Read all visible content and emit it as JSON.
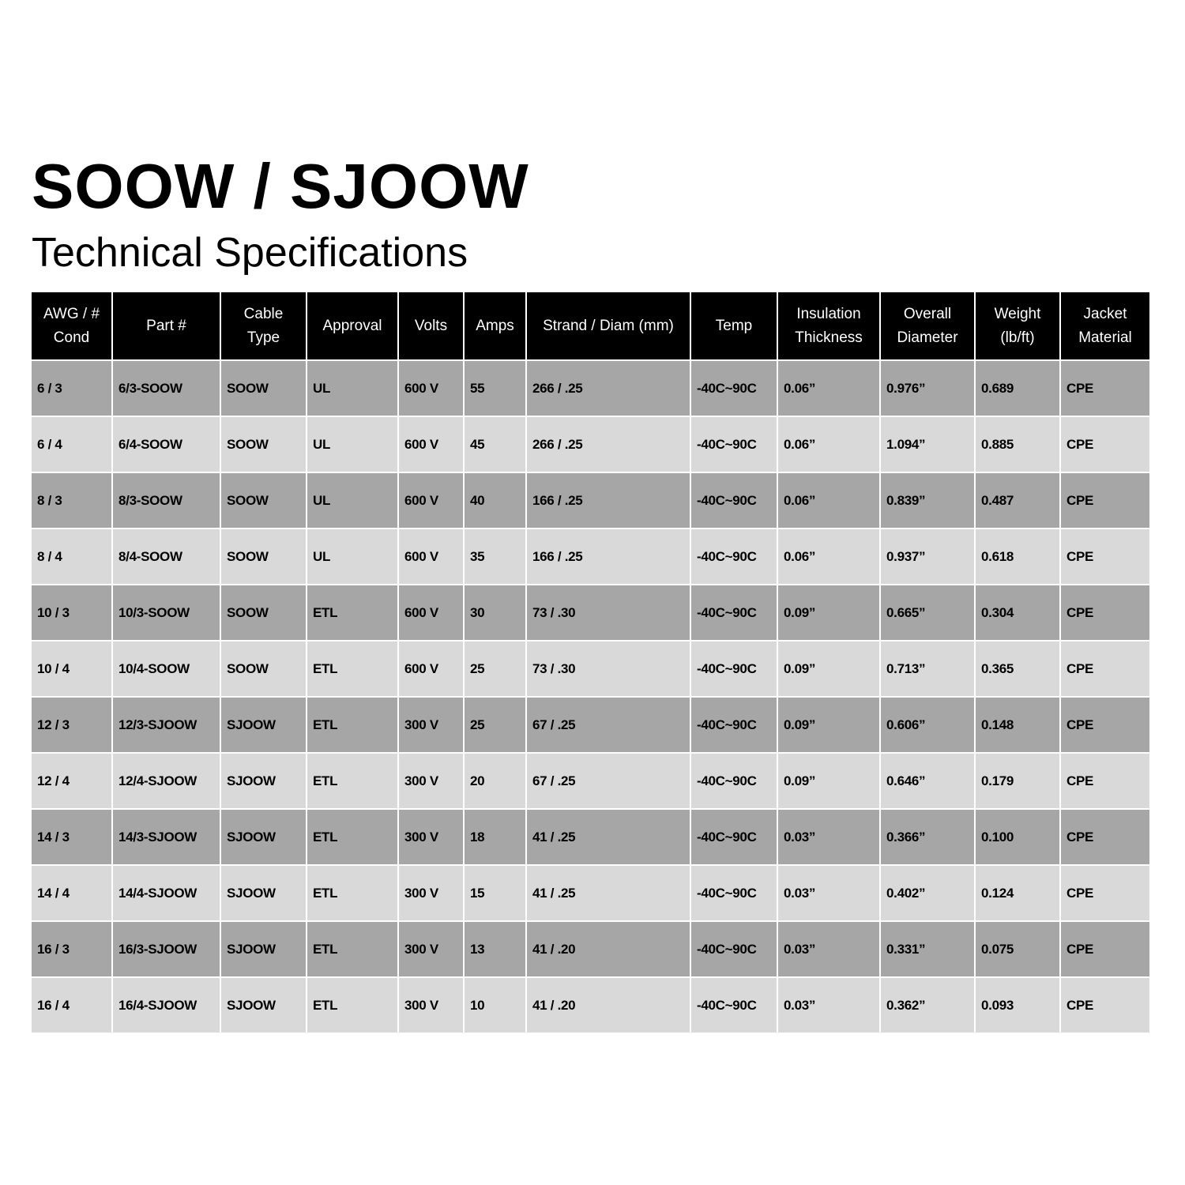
{
  "title": "SOOW / SJOOW",
  "subtitle": "Technical Specifications",
  "colors": {
    "header_bg": "#000000",
    "row_dark": "#a6a6a6",
    "row_light": "#d9d9d9"
  },
  "table": {
    "headers": [
      "AWG / #\nCond",
      "Part #",
      "Cable\nType",
      "Approval",
      "Volts",
      "Amps",
      "Strand / Diam  (mm)",
      "Temp",
      "Insulation\nThickness",
      "Overall\nDiameter",
      "Weight\n(lb/ft)",
      "Jacket\nMaterial"
    ],
    "rows": [
      [
        "6 / 3",
        "6/3-SOOW",
        "SOOW",
        "UL",
        "600 V",
        "55",
        "266 / .25",
        "-40C~90C",
        "0.06”",
        "0.976”",
        "0.689",
        "CPE"
      ],
      [
        "6 / 4",
        "6/4-SOOW",
        "SOOW",
        "UL",
        "600 V",
        "45",
        "266 / .25",
        "-40C~90C",
        "0.06”",
        "1.094”",
        "0.885",
        "CPE"
      ],
      [
        "8 / 3",
        "8/3-SOOW",
        "SOOW",
        "UL",
        "600 V",
        "40",
        "166 / .25",
        "-40C~90C",
        "0.06”",
        "0.839”",
        "0.487",
        "CPE"
      ],
      [
        "8 / 4",
        "8/4-SOOW",
        "SOOW",
        "UL",
        "600 V",
        "35",
        "166 / .25",
        "-40C~90C",
        "0.06”",
        "0.937”",
        "0.618",
        "CPE"
      ],
      [
        "10 / 3",
        "10/3-SOOW",
        "SOOW",
        "ETL",
        "600 V",
        "30",
        "73 / .30",
        "-40C~90C",
        "0.09”",
        "0.665”",
        "0.304",
        "CPE"
      ],
      [
        "10 / 4",
        "10/4-SOOW",
        "SOOW",
        "ETL",
        "600 V",
        "25",
        "73 / .30",
        "-40C~90C",
        "0.09”",
        "0.713”",
        "0.365",
        "CPE"
      ],
      [
        "12 / 3",
        "12/3-SJOOW",
        "SJOOW",
        "ETL",
        "300 V",
        "25",
        "67 / .25",
        "-40C~90C",
        "0.09”",
        "0.606”",
        "0.148",
        "CPE"
      ],
      [
        "12 / 4",
        "12/4-SJOOW",
        "SJOOW",
        "ETL",
        "300 V",
        "20",
        "67 / .25",
        "-40C~90C",
        "0.09”",
        "0.646”",
        "0.179",
        "CPE"
      ],
      [
        "14 / 3",
        "14/3-SJOOW",
        "SJOOW",
        "ETL",
        "300 V",
        "18",
        "41 / .25",
        "-40C~90C",
        "0.03”",
        "0.366”",
        "0.100",
        "CPE"
      ],
      [
        "14 / 4",
        "14/4-SJOOW",
        "SJOOW",
        "ETL",
        "300 V",
        "15",
        "41 / .25",
        "-40C~90C",
        "0.03”",
        "0.402”",
        "0.124",
        "CPE"
      ],
      [
        "16 / 3",
        "16/3-SJOOW",
        "SJOOW",
        "ETL",
        "300 V",
        "13",
        "41 / .20",
        "-40C~90C",
        "0.03”",
        "0.331”",
        "0.075",
        "CPE"
      ],
      [
        "16 / 4",
        "16/4-SJOOW",
        "SJOOW",
        "ETL",
        "300 V",
        "10",
        "41 / .20",
        "-40C~90C",
        "0.03”",
        "0.362”",
        "0.093",
        "CPE"
      ]
    ]
  }
}
